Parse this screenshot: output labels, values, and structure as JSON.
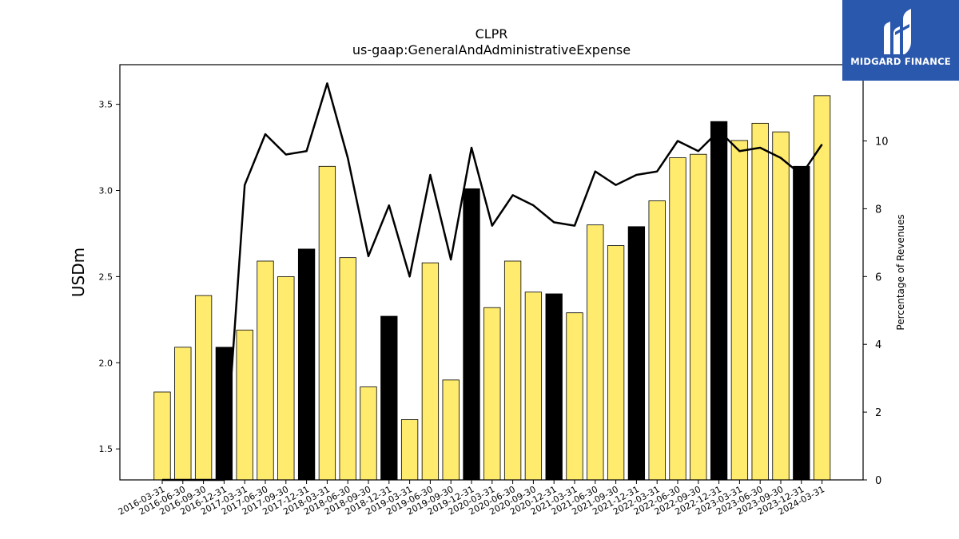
{
  "chart_data": {
    "type": "bar",
    "title": "CLPR",
    "subtitle": "us-gaap:GeneralAndAdministrativeExpense",
    "ylabel": "USDm",
    "ylabel_right": "Percentage of Revenues",
    "ylim": [
      1.32,
      3.73
    ],
    "ylim_right": [
      0,
      12.25
    ],
    "yticks": [
      1.5,
      2.0,
      2.5,
      3.0,
      3.5
    ],
    "yticks_right": [
      0,
      2,
      4,
      6,
      8,
      10
    ],
    "categories": [
      "2016-03-31",
      "2016-06-30",
      "2016-09-30",
      "2016-12-31",
      "2017-03-31",
      "2017-06-30",
      "2017-09-30",
      "2017-12-31",
      "2018-03-31",
      "2018-06-30",
      "2018-09-30",
      "2018-12-31",
      "2019-03-31",
      "2019-06-30",
      "2019-09-30",
      "2019-12-31",
      "2020-03-31",
      "2020-06-30",
      "2020-09-30",
      "2020-12-31",
      "2021-03-31",
      "2021-06-30",
      "2021-09-30",
      "2021-12-31",
      "2022-03-31",
      "2022-06-30",
      "2022-09-30",
      "2022-12-31",
      "2023-03-31",
      "2023-06-30",
      "2023-09-30",
      "2023-12-31",
      "2024-03-31"
    ],
    "series": [
      {
        "values": [
          1.83,
          2.09,
          2.39,
          2.09,
          2.19,
          2.59,
          2.5,
          2.66,
          3.14,
          2.61,
          1.86,
          2.27,
          1.67,
          2.58,
          1.9,
          3.01,
          2.32,
          2.59,
          2.41,
          2.4,
          2.29,
          2.8,
          2.68,
          2.79,
          2.94,
          3.19,
          3.21,
          3.4,
          3.29,
          3.39,
          3.34,
          3.14,
          3.55
        ],
        "highlight": [
          false,
          false,
          false,
          true,
          false,
          false,
          false,
          true,
          false,
          false,
          false,
          true,
          false,
          false,
          false,
          true,
          false,
          false,
          false,
          true,
          false,
          false,
          false,
          true,
          false,
          false,
          false,
          true,
          false,
          false,
          false,
          true,
          false
        ]
      },
      {
        "values": [
          0,
          0,
          0,
          0,
          8.7,
          10.2,
          9.6,
          9.7,
          11.7,
          9.5,
          6.6,
          8.1,
          6.0,
          9.0,
          6.5,
          9.8,
          7.5,
          8.4,
          8.1,
          7.6,
          7.5,
          9.1,
          8.7,
          9.0,
          9.1,
          10.0,
          9.7,
          10.3,
          9.7,
          9.8,
          9.5,
          9.0,
          9.9
        ]
      }
    ],
    "colors": {
      "bar": "#ffeb6e",
      "bar_highlight": "#000000",
      "line": "#000000"
    },
    "grid": false
  },
  "logo": {
    "text": "MIDGARD FINANCE",
    "bg": "#2a58ad"
  }
}
